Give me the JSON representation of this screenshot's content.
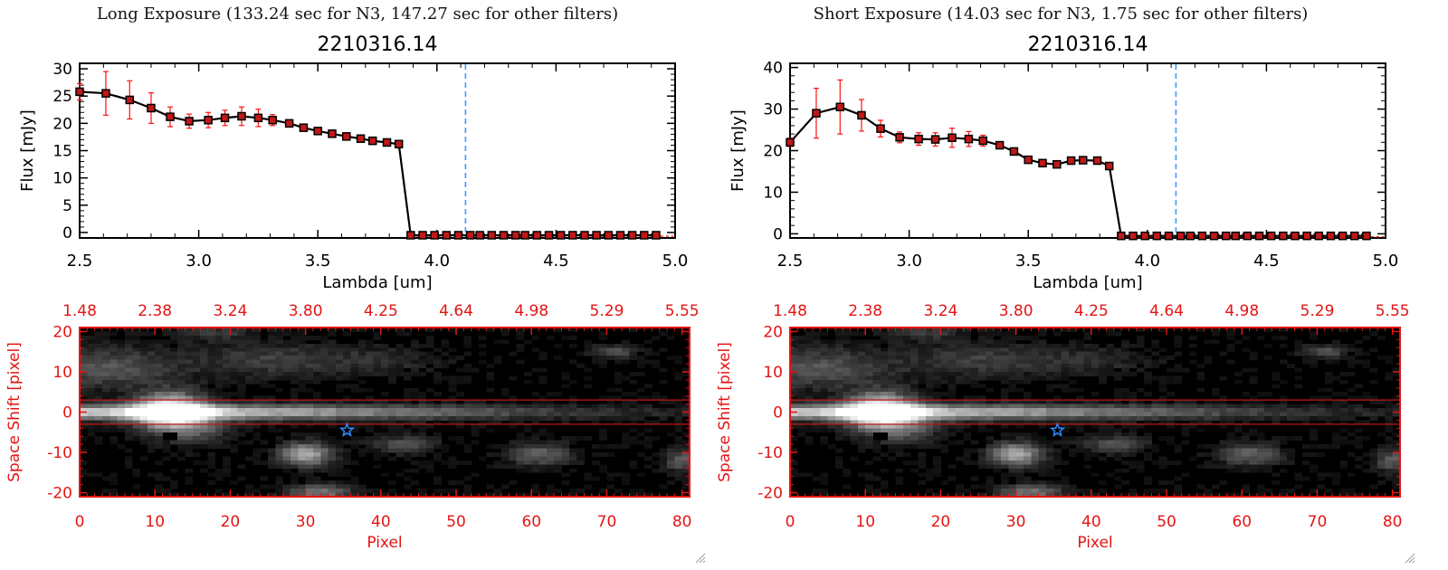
{
  "colors": {
    "axis": "#000000",
    "line": "#000000",
    "marker": "#c01818",
    "errorbar": "#ff1010",
    "dashed_line": "#3a9cff",
    "image_frame": "#e41414",
    "slit_line": "#c41414",
    "star": "#2f8cff"
  },
  "panels": [
    {
      "exposure_title": "Long Exposure (133.24 sec for N3, 147.27 sec for other filters)",
      "chart_data": {
        "type": "line",
        "title": "2210316.14",
        "xlabel": "Lambda [um]",
        "ylabel": "Flux [mJy]",
        "xlim": [
          2.5,
          5.0
        ],
        "ylim": [
          -1,
          31
        ],
        "xticks": [
          "2.5",
          "3.0",
          "3.5",
          "4.0",
          "4.5",
          "5.0"
        ],
        "xtick_values": [
          2.5,
          3.0,
          3.5,
          4.0,
          4.5,
          5.0
        ],
        "yticks": [
          "0",
          "5",
          "10",
          "15",
          "20",
          "25",
          "30"
        ],
        "ytick_values": [
          0,
          5,
          10,
          15,
          20,
          25,
          30
        ],
        "vline_x": 4.12,
        "series": [
          {
            "name": "flux",
            "x": [
              2.5,
              2.61,
              2.71,
              2.8,
              2.88,
              2.96,
              3.04,
              3.11,
              3.18,
              3.25,
              3.31,
              3.38,
              3.44,
              3.5,
              3.56,
              3.62,
              3.68,
              3.73,
              3.79,
              3.84,
              3.89,
              3.94,
              3.99,
              4.04,
              4.09,
              4.14,
              4.18,
              4.23,
              4.28,
              4.33,
              4.37,
              4.42,
              4.47,
              4.52,
              4.57,
              4.62,
              4.67,
              4.72,
              4.77,
              4.82,
              4.87,
              4.92
            ],
            "y": [
              25.8,
              25.5,
              24.3,
              22.8,
              21.2,
              20.4,
              20.6,
              21.0,
              21.3,
              21.0,
              20.6,
              20.0,
              19.2,
              18.6,
              18.1,
              17.6,
              17.2,
              16.8,
              16.5,
              16.2,
              -0.5,
              -0.5,
              -0.5,
              -0.5,
              -0.5,
              -0.5,
              -0.5,
              -0.5,
              -0.5,
              -0.5,
              -0.5,
              -0.5,
              -0.5,
              -0.5,
              -0.5,
              -0.5,
              -0.5,
              -0.5,
              -0.5,
              -0.5,
              -0.5,
              -0.5
            ],
            "yerr": [
              1.5,
              4.0,
              3.5,
              2.8,
              1.8,
              1.3,
              1.4,
              1.4,
              1.7,
              1.6,
              1.0,
              0.6,
              0.4,
              0.3,
              0.3,
              0.3,
              0.3,
              0.3,
              0.3,
              0.3,
              0,
              0,
              0,
              0,
              0,
              0,
              0,
              0,
              0,
              0,
              0,
              0,
              0,
              0,
              0,
              0,
              0,
              0,
              0,
              0,
              0,
              0
            ]
          }
        ]
      },
      "image": {
        "xlabel": "Pixel",
        "ylabel": "Space Shift [pixel]",
        "xticks": [
          "0",
          "10",
          "20",
          "30",
          "40",
          "50",
          "60",
          "70",
          "80"
        ],
        "xtick_values": [
          0,
          10,
          20,
          30,
          40,
          50,
          60,
          70,
          80
        ],
        "top_ticks": [
          "1.48",
          "2.38",
          "3.24",
          "3.80",
          "4.25",
          "4.64",
          "4.98",
          "5.29",
          "5.55"
        ],
        "yticks": [
          "20",
          "10",
          "0",
          "-10",
          "-20"
        ],
        "ytick_values": [
          20,
          10,
          0,
          -10,
          -20
        ],
        "xlim": [
          0,
          81
        ],
        "ylim": [
          -21,
          21
        ],
        "slit_lines_y": [
          3,
          -3
        ],
        "star_position": [
          35.5,
          -4.5
        ]
      }
    },
    {
      "exposure_title": "Short Exposure (14.03 sec for N3, 1.75 sec for other filters)",
      "chart_data": {
        "type": "line",
        "title": "2210316.14",
        "xlabel": "Lambda [um]",
        "ylabel": "Flux [mJy]",
        "xlim": [
          2.5,
          5.0
        ],
        "ylim": [
          -1,
          41
        ],
        "xticks": [
          "2.5",
          "3.0",
          "3.5",
          "4.0",
          "4.5",
          "5.0"
        ],
        "xtick_values": [
          2.5,
          3.0,
          3.5,
          4.0,
          4.5,
          5.0
        ],
        "yticks": [
          "0",
          "10",
          "20",
          "30",
          "40"
        ],
        "ytick_values": [
          0,
          10,
          20,
          30,
          40
        ],
        "vline_x": 4.12,
        "series": [
          {
            "name": "flux",
            "x": [
              2.5,
              2.61,
              2.71,
              2.8,
              2.88,
              2.96,
              3.04,
              3.11,
              3.18,
              3.25,
              3.31,
              3.38,
              3.44,
              3.5,
              3.56,
              3.62,
              3.68,
              3.73,
              3.79,
              3.84,
              3.89,
              3.94,
              3.99,
              4.04,
              4.09,
              4.14,
              4.18,
              4.23,
              4.28,
              4.33,
              4.37,
              4.42,
              4.47,
              4.52,
              4.57,
              4.62,
              4.67,
              4.72,
              4.77,
              4.82,
              4.87,
              4.92
            ],
            "y": [
              22.0,
              29.0,
              30.5,
              28.5,
              25.3,
              23.2,
              22.8,
              22.7,
              23.1,
              22.8,
              22.4,
              21.3,
              19.8,
              17.8,
              17.0,
              16.7,
              17.6,
              17.7,
              17.6,
              16.3,
              -0.5,
              -0.5,
              -0.5,
              -0.5,
              -0.5,
              -0.5,
              -0.5,
              -0.5,
              -0.5,
              -0.5,
              -0.5,
              -0.5,
              -0.5,
              -0.5,
              -0.5,
              -0.5,
              -0.5,
              -0.5,
              -0.5,
              -0.5,
              -0.5,
              -0.5
            ],
            "yerr": [
              1.0,
              6.0,
              6.5,
              3.8,
              2.0,
              1.3,
              1.5,
              1.6,
              2.3,
              1.8,
              1.3,
              0.6,
              0.5,
              0.4,
              0.4,
              0.4,
              0.4,
              0.4,
              0.4,
              0.4,
              0,
              0,
              0,
              0,
              0,
              0,
              0,
              0,
              0,
              0,
              0,
              0,
              0,
              0,
              0,
              0,
              0,
              0,
              0,
              0,
              0,
              0
            ]
          }
        ]
      },
      "image": {
        "xlabel": "Pixel",
        "ylabel": "Space Shift [pixel]",
        "xticks": [
          "0",
          "10",
          "20",
          "30",
          "40",
          "50",
          "60",
          "70",
          "80"
        ],
        "xtick_values": [
          0,
          10,
          20,
          30,
          40,
          50,
          60,
          70,
          80
        ],
        "top_ticks": [
          "1.48",
          "2.38",
          "3.24",
          "3.80",
          "4.25",
          "4.64",
          "4.98",
          "5.29",
          "5.55"
        ],
        "yticks": [
          "20",
          "10",
          "0",
          "-10",
          "-20"
        ],
        "ytick_values": [
          20,
          10,
          0,
          -10,
          -20
        ],
        "xlim": [
          0,
          81
        ],
        "ylim": [
          -21,
          21
        ],
        "slit_lines_y": [
          3,
          -3
        ],
        "star_position": [
          35.5,
          -4.5
        ]
      }
    }
  ]
}
